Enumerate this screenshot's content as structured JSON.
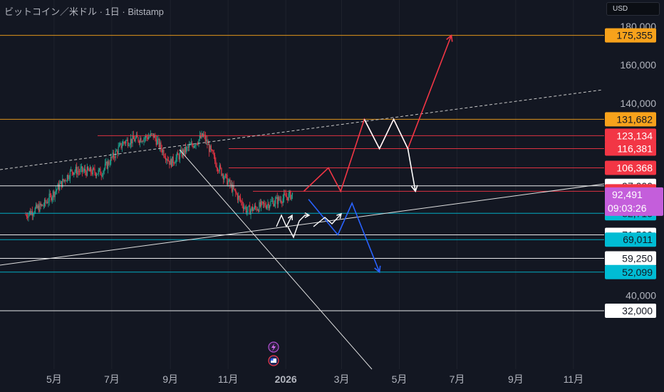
{
  "header": {
    "title": "ビットコイン／米ドル · 1日 · Bitstamp",
    "currency": "USD"
  },
  "colors": {
    "background": "#131722",
    "orange": "#f7a21b",
    "red": "#f23645",
    "cyan": "#00bcd4",
    "white": "#ffffff",
    "purple": "#c45edb",
    "blue": "#2962ff",
    "up_candle": "#22ab94",
    "down_candle": "#f23645",
    "axis_text": "#b2b5be"
  },
  "chart_data": {
    "type": "candlestick",
    "title": "ビットコイン／米ドル · 1日 · Bitstamp",
    "x_tick_labels": [
      "5月",
      "7月",
      "9月",
      "11月",
      "2026",
      "3月",
      "5月",
      "7月",
      "9月",
      "11月"
    ],
    "y_tick_labels": [
      "180,000",
      "160,000",
      "140,000",
      "40,000"
    ],
    "y_ticks": [
      180000,
      160000,
      140000,
      40000
    ],
    "horizontal_levels": [
      {
        "value": 175355,
        "label": "175,355",
        "color": "orange"
      },
      {
        "value": 131682,
        "label": "131,682",
        "color": "orange"
      },
      {
        "value": 123134,
        "label": "123,134",
        "color": "red"
      },
      {
        "value": 116381,
        "label": "116,381",
        "color": "red"
      },
      {
        "value": 106368,
        "label": "106,368",
        "color": "red"
      },
      {
        "value": 97000,
        "label": "97,000",
        "color": "white"
      },
      {
        "value": 94172,
        "label": "94,172",
        "color": "red"
      },
      {
        "value": 82715,
        "label": "82,715",
        "color": "cyan"
      },
      {
        "value": 71500,
        "label": "71,500",
        "color": "white"
      },
      {
        "value": 69011,
        "label": "69,011",
        "color": "cyan"
      },
      {
        "value": 59250,
        "label": "59,250",
        "color": "white"
      },
      {
        "value": 52099,
        "label": "52,099",
        "color": "cyan"
      },
      {
        "value": 32000,
        "label": "32,000",
        "color": "white"
      }
    ],
    "current_price": {
      "value": 92491,
      "label": "92,491",
      "countdown": "09:03:26"
    },
    "price_path_approx": [
      {
        "date": "2025-04-01",
        "close": 82000
      },
      {
        "date": "2025-04-20",
        "close": 87000
      },
      {
        "date": "2025-05-20",
        "close": 105000
      },
      {
        "date": "2025-06-20",
        "close": 104000
      },
      {
        "date": "2025-07-14",
        "close": 120000
      },
      {
        "date": "2025-08-14",
        "close": 123134
      },
      {
        "date": "2025-09-01",
        "close": 109000
      },
      {
        "date": "2025-10-06",
        "close": 123134
      },
      {
        "date": "2025-10-20",
        "close": 108000
      },
      {
        "date": "2025-11-21",
        "close": 84000
      },
      {
        "date": "2025-12-15",
        "close": 88000
      },
      {
        "date": "2026-01-08",
        "close": 92491
      }
    ],
    "scenarios": [
      {
        "color": "red",
        "points": [
          {
            "date": "2026-01-20",
            "value": 94172
          },
          {
            "date": "2026-02-15",
            "value": 106368
          },
          {
            "date": "2026-02-28",
            "value": 94172
          },
          {
            "date": "2026-03-25",
            "value": 131682
          },
          {
            "date": "2026-04-10",
            "value": 116381
          },
          {
            "date": "2026-04-25",
            "value": 131682
          },
          {
            "date": "2026-05-10",
            "value": 116381
          },
          {
            "date": "2026-06-25",
            "value": 175355
          }
        ]
      },
      {
        "color": "white",
        "points": [
          {
            "date": "2026-03-25",
            "value": 131682
          },
          {
            "date": "2026-04-10",
            "value": 116381
          },
          {
            "date": "2026-04-25",
            "value": 131682
          },
          {
            "date": "2026-05-10",
            "value": 116381
          },
          {
            "date": "2026-05-18",
            "value": 94172
          }
        ]
      },
      {
        "color": "blue",
        "points": [
          {
            "date": "2026-01-25",
            "value": 90000
          },
          {
            "date": "2026-02-25",
            "value": 71500
          },
          {
            "date": "2026-03-12",
            "value": 88000
          },
          {
            "date": "2026-04-10",
            "value": 52099
          }
        ]
      }
    ]
  }
}
